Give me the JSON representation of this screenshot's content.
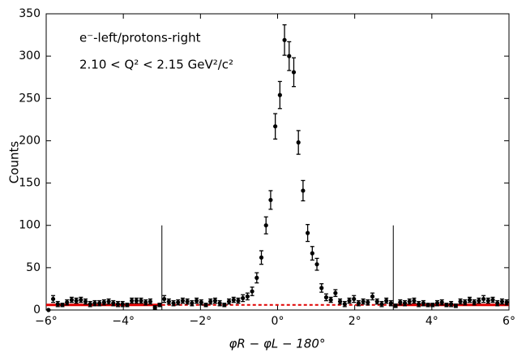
{
  "chart_data": {
    "type": "scatter",
    "x_label": "φR − φL − 180°",
    "y_label": "Counts",
    "annotations": [
      "e⁻-left/protons-right",
      "2.10 < Q² < 2.15 GeV²/c²"
    ],
    "x": [
      -5.94,
      -5.82,
      -5.7,
      -5.58,
      -5.46,
      -5.34,
      -5.22,
      -5.1,
      -4.98,
      -4.86,
      -4.74,
      -4.62,
      -4.5,
      -4.38,
      -4.26,
      -4.14,
      -4.02,
      -3.9,
      -3.78,
      -3.66,
      -3.54,
      -3.42,
      -3.3,
      -3.18,
      -3.06,
      -2.94,
      -2.82,
      -2.7,
      -2.58,
      -2.46,
      -2.34,
      -2.22,
      -2.1,
      -1.98,
      -1.86,
      -1.74,
      -1.62,
      -1.5,
      -1.38,
      -1.26,
      -1.14,
      -1.02,
      -0.9,
      -0.78,
      -0.66,
      -0.54,
      -0.42,
      -0.3,
      -0.18,
      -0.06,
      0.06,
      0.18,
      0.3,
      0.42,
      0.54,
      0.66,
      0.78,
      0.9,
      1.02,
      1.14,
      1.26,
      1.38,
      1.5,
      1.62,
      1.74,
      1.86,
      1.98,
      2.1,
      2.22,
      2.34,
      2.46,
      2.58,
      2.7,
      2.82,
      2.94,
      3.06,
      3.18,
      3.3,
      3.42,
      3.54,
      3.66,
      3.78,
      3.9,
      4.02,
      4.14,
      4.26,
      4.38,
      4.5,
      4.62,
      4.74,
      4.86,
      4.98,
      5.1,
      5.22,
      5.34,
      5.46,
      5.58,
      5.7,
      5.82,
      5.94
    ],
    "values": [
      0,
      13,
      7,
      6,
      9,
      12,
      11,
      12,
      10,
      7,
      8,
      8,
      9,
      10,
      8,
      7,
      7,
      6,
      11,
      11,
      11,
      9,
      10,
      3,
      6,
      13,
      10,
      8,
      9,
      11,
      10,
      8,
      11,
      9,
      6,
      10,
      11,
      8,
      6,
      10,
      12,
      11,
      14,
      16,
      22,
      38,
      62,
      100,
      130,
      217,
      254,
      319,
      300,
      281,
      198,
      141,
      91,
      67,
      54,
      26,
      15,
      12,
      20,
      10,
      7,
      11,
      13,
      8,
      10,
      9,
      16,
      10,
      7,
      11,
      8,
      5,
      9,
      8,
      10,
      11,
      7,
      8,
      6,
      6,
      8,
      9,
      6,
      7,
      5,
      10,
      9,
      12,
      9,
      11,
      13,
      11,
      12,
      8,
      10,
      9
    ],
    "errors": [
      0,
      4,
      3,
      2,
      3,
      3,
      3,
      3,
      3,
      3,
      3,
      3,
      3,
      3,
      3,
      3,
      3,
      2,
      3,
      3,
      3,
      3,
      3,
      2,
      2,
      4,
      3,
      3,
      3,
      3,
      3,
      3,
      3,
      3,
      2,
      3,
      3,
      3,
      2,
      3,
      3,
      3,
      4,
      4,
      5,
      6,
      8,
      10,
      11,
      15,
      16,
      18,
      17,
      17,
      14,
      12,
      10,
      8,
      7,
      5,
      4,
      3,
      4,
      3,
      3,
      3,
      4,
      3,
      3,
      3,
      4,
      3,
      3,
      3,
      3,
      2,
      3,
      3,
      3,
      3,
      3,
      3,
      2,
      2,
      3,
      3,
      2,
      3,
      2,
      3,
      3,
      3,
      3,
      3,
      4,
      3,
      3,
      3,
      3,
      3
    ],
    "color": "#000000",
    "fit": {
      "value": 6,
      "color": "#e00000"
    },
    "cuts": [
      -3,
      3
    ],
    "cut_height": 100,
    "xlim": [
      -6,
      6
    ],
    "xticks": [
      {
        "value": -6,
        "label": "−6°"
      },
      {
        "value": -4,
        "label": "−4°"
      },
      {
        "value": -2,
        "label": "−2°"
      },
      {
        "value": 0,
        "label": "0°"
      },
      {
        "value": 2,
        "label": "2°"
      },
      {
        "value": 4,
        "label": "4°"
      },
      {
        "value": 6,
        "label": "6°"
      }
    ],
    "ylim": [
      0,
      350
    ],
    "yticks": [
      0,
      50,
      100,
      150,
      200,
      250,
      300,
      350
    ]
  }
}
